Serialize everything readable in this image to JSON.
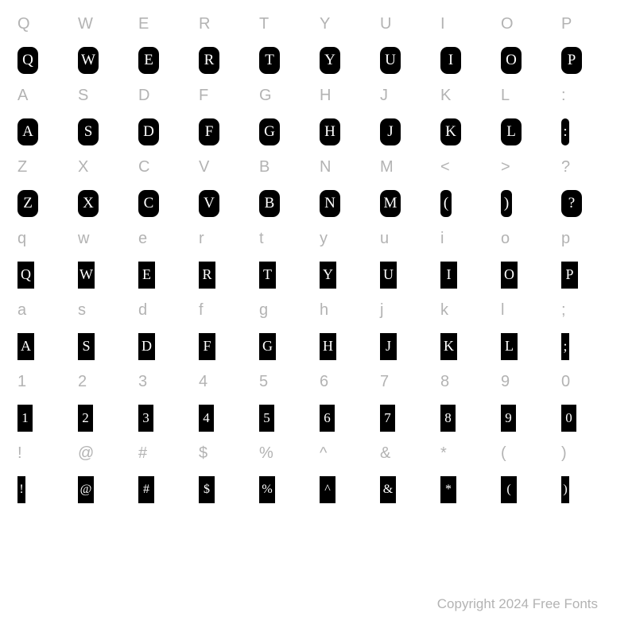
{
  "rows": [
    {
      "type": "label",
      "chars": [
        "Q",
        "W",
        "E",
        "R",
        "T",
        "Y",
        "U",
        "I",
        "O",
        "P"
      ]
    },
    {
      "type": "glyph-rounded",
      "chars": [
        "Q",
        "W",
        "E",
        "R",
        "T",
        "Y",
        "U",
        "I",
        "O",
        "P"
      ]
    },
    {
      "type": "label",
      "chars": [
        "A",
        "S",
        "D",
        "F",
        "G",
        "H",
        "J",
        "K",
        "L",
        ":"
      ]
    },
    {
      "type": "glyph-rounded",
      "chars": [
        "A",
        "S",
        "D",
        "F",
        "G",
        "H",
        "J",
        "K",
        "L",
        ":"
      ],
      "narrow": [
        9
      ]
    },
    {
      "type": "label",
      "chars": [
        "Z",
        "X",
        "C",
        "V",
        "B",
        "N",
        "M",
        "<",
        ">",
        "?"
      ]
    },
    {
      "type": "glyph-rounded",
      "chars": [
        "Z",
        "X",
        "C",
        "V",
        "B",
        "N",
        "M",
        "(",
        ")",
        "?"
      ],
      "bracket": [
        7,
        8
      ]
    },
    {
      "type": "label",
      "chars": [
        "q",
        "w",
        "e",
        "r",
        "t",
        "y",
        "u",
        "i",
        "o",
        "p"
      ]
    },
    {
      "type": "glyph-rect",
      "chars": [
        "Q",
        "W",
        "E",
        "R",
        "T",
        "Y",
        "U",
        "I",
        "O",
        "P"
      ]
    },
    {
      "type": "label",
      "chars": [
        "a",
        "s",
        "d",
        "f",
        "g",
        "h",
        "j",
        "k",
        "l",
        ";"
      ]
    },
    {
      "type": "glyph-rect",
      "chars": [
        "A",
        "S",
        "D",
        "F",
        "G",
        "H",
        "J",
        "K",
        "L",
        ";"
      ],
      "narrow": [
        9
      ]
    },
    {
      "type": "label",
      "chars": [
        "1",
        "2",
        "3",
        "4",
        "5",
        "6",
        "7",
        "8",
        "9",
        "0"
      ]
    },
    {
      "type": "glyph-num",
      "chars": [
        "1",
        "2",
        "3",
        "4",
        "5",
        "6",
        "7",
        "8",
        "9",
        "0"
      ]
    },
    {
      "type": "label",
      "chars": [
        "!",
        "@",
        "#",
        "$",
        "%",
        "^",
        "&",
        "*",
        "(",
        ")"
      ]
    },
    {
      "type": "glyph-sym",
      "chars": [
        "!",
        "@",
        "#",
        "$",
        "%",
        "^",
        "&",
        "*",
        "(",
        ")"
      ],
      "narrow": [
        0,
        9
      ],
      "bracketish": [
        8,
        9
      ]
    }
  ],
  "footer": {
    "copyright": "Copyright 2024 Free Fonts"
  },
  "colors": {
    "background": "#ffffff",
    "label_text": "#b3b3b3",
    "glyph_bg": "#000000",
    "glyph_fg": "#ffffff"
  }
}
